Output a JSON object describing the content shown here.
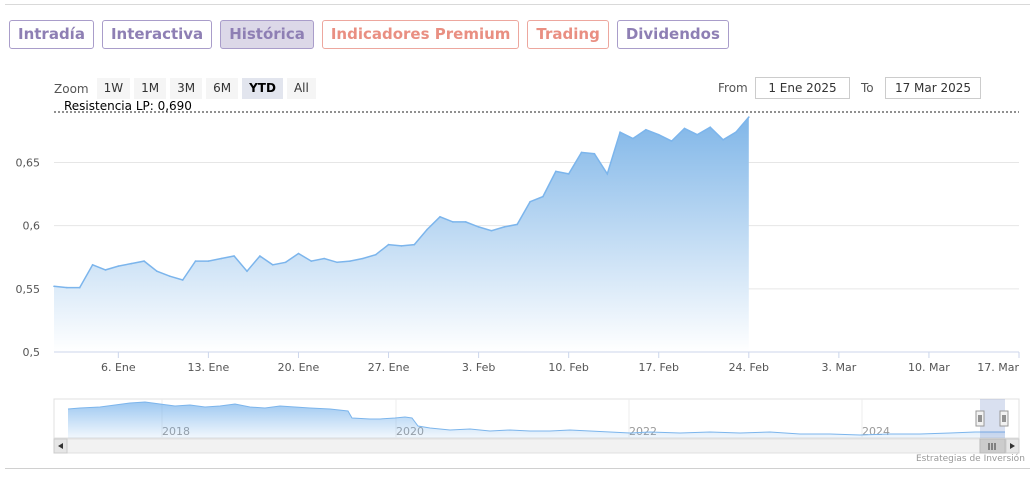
{
  "tabs": [
    {
      "label": "Intradía",
      "color": "violet",
      "active": false
    },
    {
      "label": "Interactiva",
      "color": "violet",
      "active": false
    },
    {
      "label": "Histórica",
      "color": "violet",
      "active": true
    },
    {
      "label": "Indicadores Premium",
      "color": "salmon",
      "active": false
    },
    {
      "label": "Trading",
      "color": "salmon",
      "active": false
    },
    {
      "label": "Dividendos",
      "color": "violet",
      "active": false
    }
  ],
  "zoom": {
    "label": "Zoom",
    "buttons": [
      "1W",
      "1M",
      "3M",
      "6M",
      "YTD",
      "All"
    ],
    "selected": "YTD"
  },
  "range": {
    "from_label": "From",
    "from_value": "1 Ene 2025",
    "to_label": "To",
    "to_value": "17 Mar 2025"
  },
  "credits": "Estrategias de Inversión",
  "colors": {
    "line": "#7cb5ec",
    "fill_top": "#80b6e8",
    "fill_bottom": "#ffffff",
    "accent": "#8e7fb4",
    "salmon": "#e98f82"
  },
  "chart_data": {
    "type": "area",
    "resistance": {
      "label": "Resistencia LP: 0,690",
      "value": 0.69
    },
    "ylim": [
      0.5,
      0.69
    ],
    "yticks": [
      {
        "value": 0.5,
        "label": "0,5"
      },
      {
        "value": 0.55,
        "label": "0,55"
      },
      {
        "value": 0.6,
        "label": "0,6"
      },
      {
        "value": 0.65,
        "label": "0,65"
      }
    ],
    "xrange": [
      "2025-01-01",
      "2025-03-17"
    ],
    "xticks": [
      {
        "date": "2025-01-06",
        "label": "6. Ene"
      },
      {
        "date": "2025-01-13",
        "label": "13. Ene"
      },
      {
        "date": "2025-01-20",
        "label": "20. Ene"
      },
      {
        "date": "2025-01-27",
        "label": "27. Ene"
      },
      {
        "date": "2025-02-03",
        "label": "3. Feb"
      },
      {
        "date": "2025-02-10",
        "label": "10. Feb"
      },
      {
        "date": "2025-02-17",
        "label": "17. Feb"
      },
      {
        "date": "2025-02-24",
        "label": "24. Feb"
      },
      {
        "date": "2025-03-03",
        "label": "3. Mar"
      },
      {
        "date": "2025-03-10",
        "label": "10. Mar"
      },
      {
        "date": "2025-03-17",
        "label": "17. Mar"
      }
    ],
    "series": [
      {
        "points": [
          [
            "2025-01-01",
            0.552
          ],
          [
            "2025-01-02",
            0.551
          ],
          [
            "2025-01-03",
            0.551
          ],
          [
            "2025-01-04",
            0.569
          ],
          [
            "2025-01-05",
            0.565
          ],
          [
            "2025-01-06",
            0.568
          ],
          [
            "2025-01-07",
            0.57
          ],
          [
            "2025-01-08",
            0.572
          ],
          [
            "2025-01-09",
            0.564
          ],
          [
            "2025-01-10",
            0.56
          ],
          [
            "2025-01-11",
            0.557
          ],
          [
            "2025-01-12",
            0.572
          ],
          [
            "2025-01-13",
            0.572
          ],
          [
            "2025-01-14",
            0.574
          ],
          [
            "2025-01-15",
            0.576
          ],
          [
            "2025-01-16",
            0.564
          ],
          [
            "2025-01-17",
            0.576
          ],
          [
            "2025-01-18",
            0.569
          ],
          [
            "2025-01-19",
            0.571
          ],
          [
            "2025-01-20",
            0.578
          ],
          [
            "2025-01-21",
            0.572
          ],
          [
            "2025-01-22",
            0.574
          ],
          [
            "2025-01-23",
            0.571
          ],
          [
            "2025-01-24",
            0.572
          ],
          [
            "2025-01-25",
            0.574
          ],
          [
            "2025-01-26",
            0.577
          ],
          [
            "2025-01-27",
            0.585
          ],
          [
            "2025-01-28",
            0.584
          ],
          [
            "2025-01-29",
            0.585
          ],
          [
            "2025-01-30",
            0.597
          ],
          [
            "2025-01-31",
            0.607
          ],
          [
            "2025-02-01",
            0.603
          ],
          [
            "2025-02-02",
            0.603
          ],
          [
            "2025-02-03",
            0.599
          ],
          [
            "2025-02-04",
            0.596
          ],
          [
            "2025-02-05",
            0.599
          ],
          [
            "2025-02-06",
            0.601
          ],
          [
            "2025-02-07",
            0.619
          ],
          [
            "2025-02-08",
            0.623
          ],
          [
            "2025-02-09",
            0.643
          ],
          [
            "2025-02-10",
            0.641
          ],
          [
            "2025-02-11",
            0.658
          ],
          [
            "2025-02-12",
            0.657
          ],
          [
            "2025-02-13",
            0.641
          ],
          [
            "2025-02-14",
            0.674
          ],
          [
            "2025-02-15",
            0.669
          ],
          [
            "2025-02-16",
            0.676
          ],
          [
            "2025-02-17",
            0.672
          ],
          [
            "2025-02-18",
            0.667
          ],
          [
            "2025-02-19",
            0.677
          ],
          [
            "2025-02-20",
            0.672
          ],
          [
            "2025-02-21",
            0.678
          ],
          [
            "2025-02-22",
            0.668
          ],
          [
            "2025-02-23",
            0.674
          ],
          [
            "2025-02-24",
            0.686
          ]
        ]
      }
    ],
    "navigator": {
      "year_labels": [
        "2018",
        "2020",
        "2022",
        "2024"
      ]
    }
  }
}
